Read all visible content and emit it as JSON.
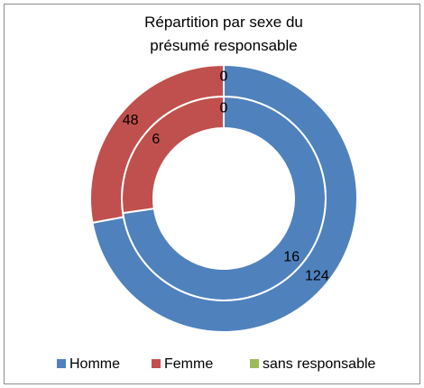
{
  "chart_data": {
    "type": "doughnut",
    "title": "Répartition par sexe du présumé responsable",
    "categories": [
      "Homme",
      "Femme",
      "sans responsable"
    ],
    "colors": [
      "#4f81bd",
      "#c0504d",
      "#9bbb59"
    ],
    "series": [
      {
        "values": [
          16,
          6,
          0
        ]
      },
      {
        "values": [
          124,
          48,
          0
        ]
      }
    ],
    "legend": "bottom"
  }
}
